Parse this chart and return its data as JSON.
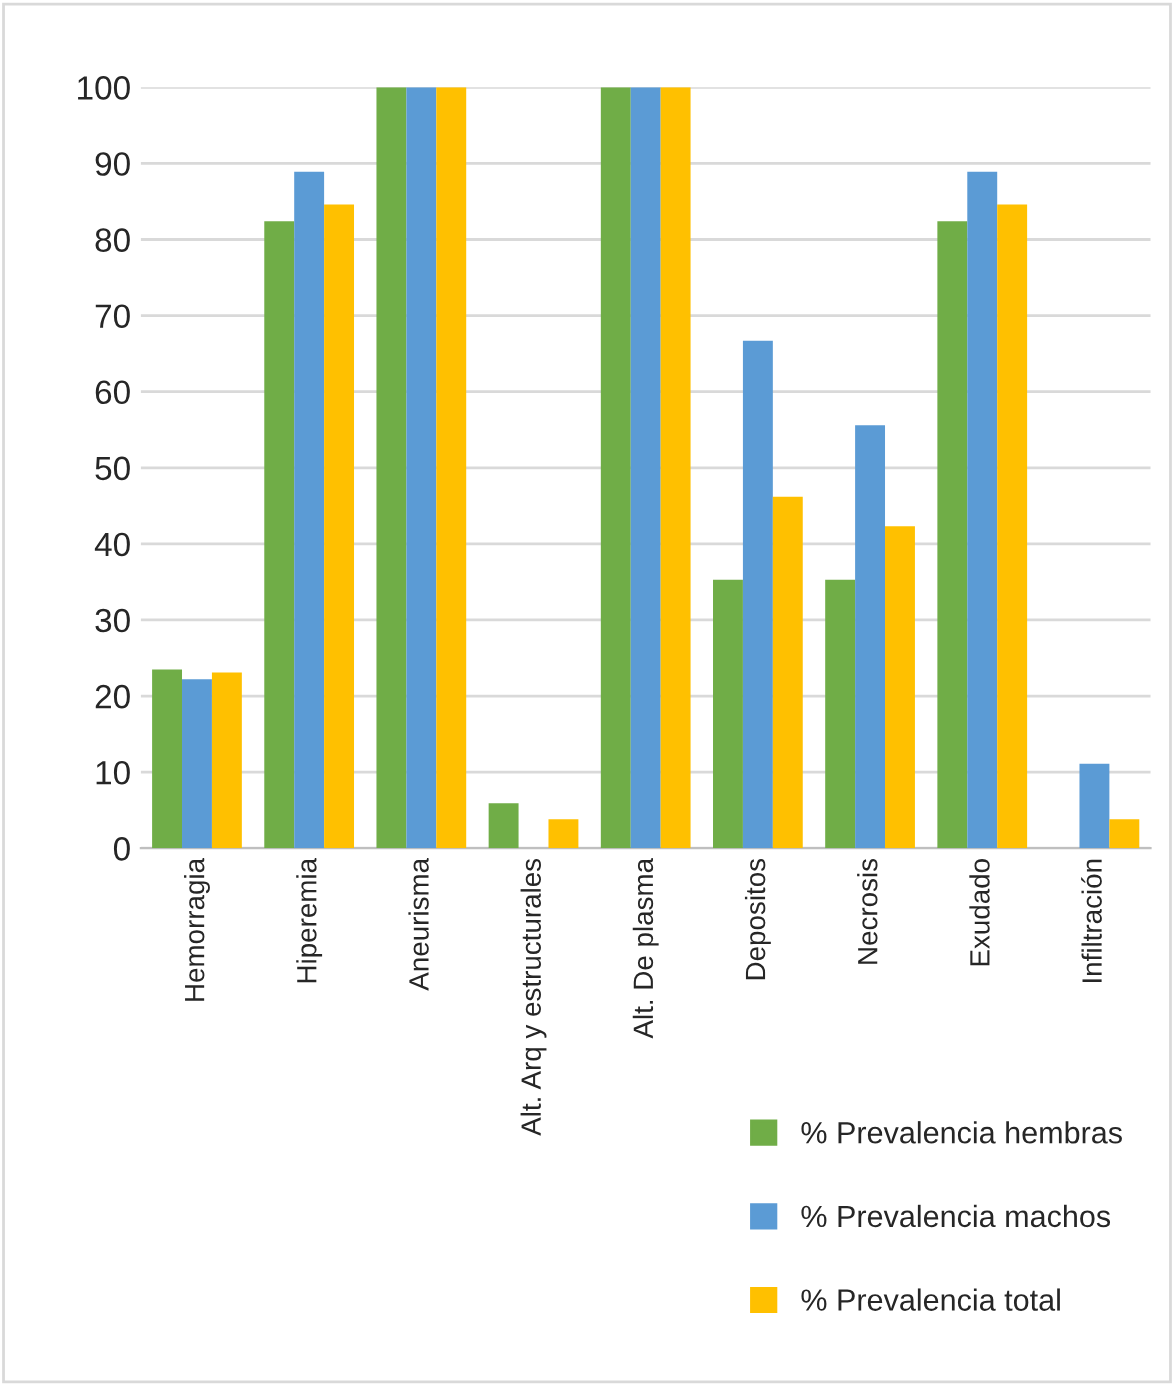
{
  "chart_data": {
    "type": "bar",
    "categories": [
      "Hemorragia",
      "Hiperemia",
      "Aneurisma",
      "Alt. Arq y estructurales",
      "Alt. De plasma",
      "Depositos",
      "Necrosis",
      "Exudado",
      "Infiltración"
    ],
    "series": [
      {
        "name": "% Prevalencia hembras",
        "color": "#70ad47",
        "values": [
          23.5,
          82.4,
          100,
          5.9,
          100,
          35.3,
          35.3,
          82.4,
          0
        ]
      },
      {
        "name": "% Prevalencia machos",
        "color": "#5b9bd5",
        "values": [
          22.2,
          88.9,
          100,
          0,
          100,
          66.7,
          55.6,
          88.9,
          11.1
        ]
      },
      {
        "name": "% Prevalencia total",
        "color": "#ffc000",
        "values": [
          23.1,
          84.6,
          100,
          3.8,
          100,
          46.2,
          42.3,
          84.6,
          3.8
        ]
      }
    ],
    "ylim": [
      0,
      100
    ],
    "yticks": [
      0,
      10,
      20,
      30,
      40,
      50,
      60,
      70,
      80,
      90,
      100
    ],
    "grid": "y",
    "legend": "bottom right"
  }
}
